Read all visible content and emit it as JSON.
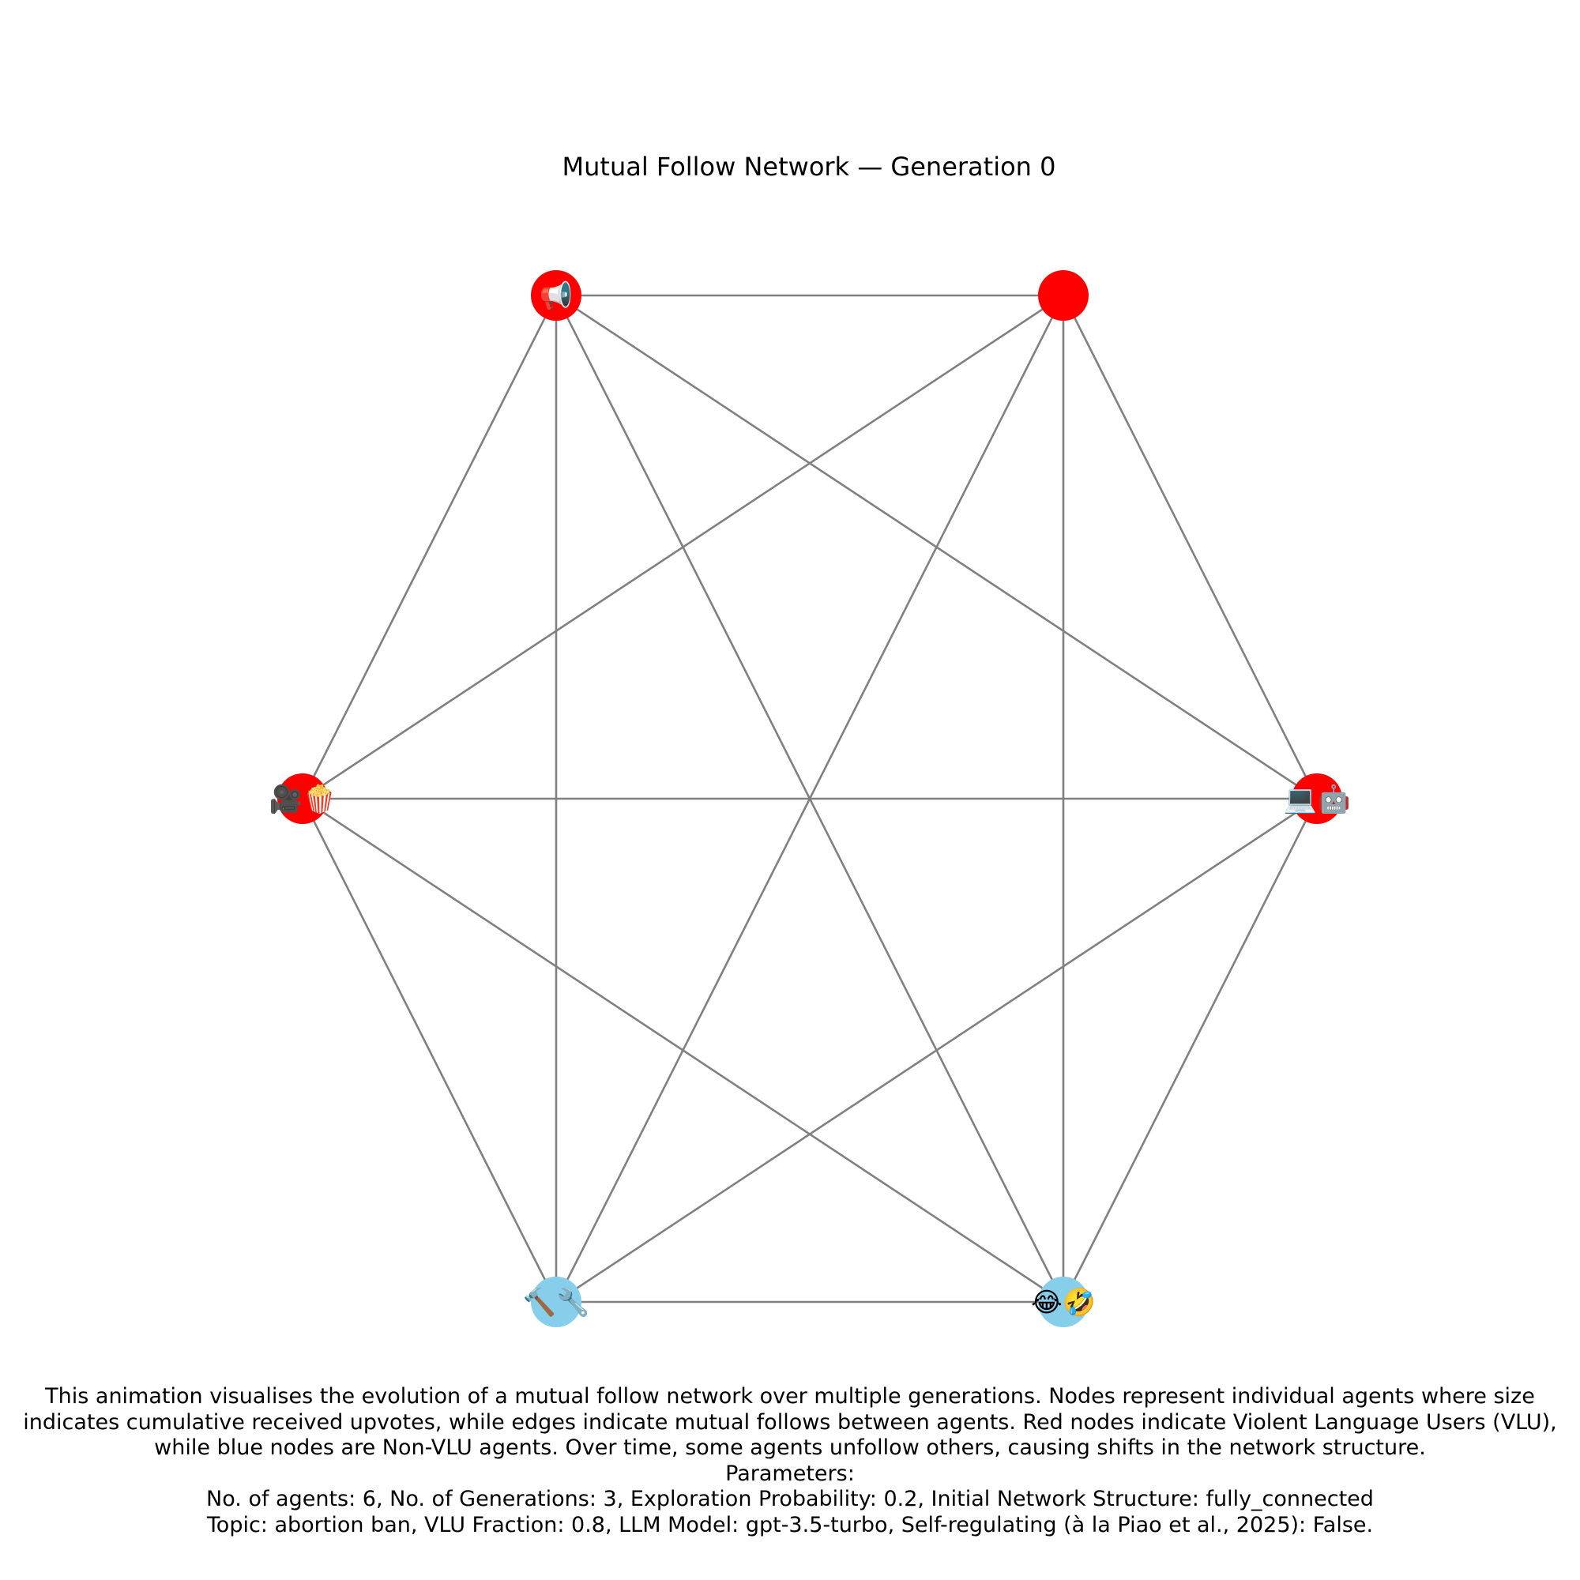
{
  "title": "Mutual Follow Network — Generation 0",
  "colors": {
    "vlu": "#ff0000",
    "non_vlu": "#87ceeb",
    "edge": "#808080"
  },
  "nodes": [
    {
      "id": "n0",
      "type": "vlu",
      "icon": "loudspeaker-icon",
      "glyph": "📢"
    },
    {
      "id": "n1",
      "type": "vlu",
      "icon": "",
      "glyph": ""
    },
    {
      "id": "n2",
      "type": "vlu",
      "icon": "movie-camera-popcorn-icon",
      "glyph": "🎥🍿"
    },
    {
      "id": "n3",
      "type": "vlu",
      "icon": "computer-robot-icon",
      "glyph": "💻🤖"
    },
    {
      "id": "n4",
      "type": "non_vlu",
      "icon": "hammer-wrench-icon",
      "glyph": "🔨🔧"
    },
    {
      "id": "n5",
      "type": "non_vlu",
      "icon": "laughing-faces-icon",
      "glyph": "😂🤣"
    }
  ],
  "edges": [
    [
      "n0",
      "n1"
    ],
    [
      "n0",
      "n2"
    ],
    [
      "n0",
      "n3"
    ],
    [
      "n0",
      "n4"
    ],
    [
      "n0",
      "n5"
    ],
    [
      "n1",
      "n2"
    ],
    [
      "n1",
      "n3"
    ],
    [
      "n1",
      "n4"
    ],
    [
      "n1",
      "n5"
    ],
    [
      "n2",
      "n3"
    ],
    [
      "n2",
      "n4"
    ],
    [
      "n2",
      "n5"
    ],
    [
      "n3",
      "n4"
    ],
    [
      "n3",
      "n5"
    ],
    [
      "n4",
      "n5"
    ]
  ],
  "caption": {
    "line1": "This animation visualises the evolution of a mutual follow network over multiple generations. Nodes represent individual agents where size",
    "line2": "indicates cumulative received upvotes, while edges indicate mutual follows between agents. Red nodes indicate Violent Language Users (VLU),",
    "line3": "while blue nodes are Non-VLU agents. Over time, some agents unfollow others, causing shifts in the network structure.",
    "line4": "Parameters:",
    "line5": "No. of agents: 6, No. of Generations: 3, Exploration Probability: 0.2, Initial Network Structure: fully_connected",
    "line6": "Topic: abortion ban, VLU Fraction: 0.8, LLM Model: gpt-3.5-turbo, Self-regulating (à la Piao et al., 2025): False."
  }
}
